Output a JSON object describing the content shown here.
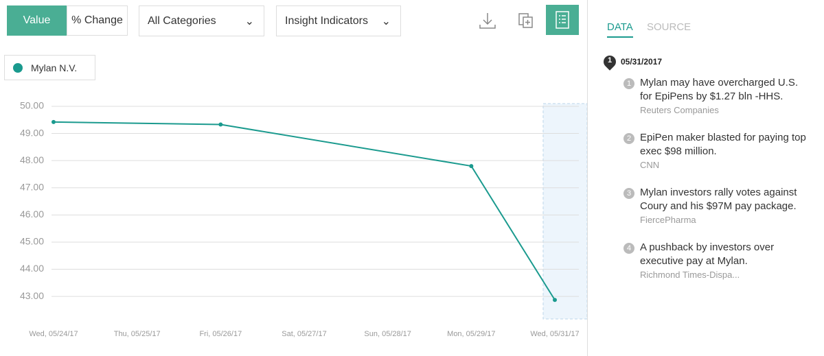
{
  "toolbar": {
    "value_button": "Value",
    "change_button": "% Change",
    "categories_dropdown": "All Categories",
    "indicators_dropdown": "Insight Indicators",
    "legend_entry": "Mylan N.V."
  },
  "chart_data": {
    "type": "line",
    "categories": [
      "Wed, 05/24/17",
      "Thu, 05/25/17",
      "Fri, 05/26/17",
      "Sat, 05/27/17",
      "Sun, 05/28/17",
      "Mon, 05/29/17",
      "Wed, 05/31/17"
    ],
    "series": [
      {
        "name": "Mylan N.V.",
        "color": "#1a9a8e",
        "values": [
          49.42,
          null,
          49.33,
          null,
          null,
          47.8,
          42.87
        ]
      }
    ],
    "ylim": [
      42.17,
      50.1
    ],
    "yticks": [
      {
        "value": 43,
        "label": "43.00"
      },
      {
        "value": 44,
        "label": "44.00"
      },
      {
        "value": 45,
        "label": "45.00"
      },
      {
        "value": 46,
        "label": "46.00"
      },
      {
        "value": 47,
        "label": "47.00"
      },
      {
        "value": 48,
        "label": "48.00"
      },
      {
        "value": 49,
        "label": "49.00"
      },
      {
        "value": 50,
        "label": "50.00"
      }
    ],
    "grid": true
  },
  "panel": {
    "tabs": [
      "DATA",
      "SOURCE"
    ],
    "marker": 1,
    "date": "05/31/2017",
    "items": [
      {
        "index": 1,
        "headline": "Mylan may have overcharged U.S. for EpiPens by $1.27 bln -HHS.",
        "source": "Reuters Companies"
      },
      {
        "index": 2,
        "headline": "EpiPen maker blasted for paying top exec $98 million.",
        "source": "CNN"
      },
      {
        "index": 3,
        "headline": "Mylan investors rally votes against Coury and his $97M pay package.",
        "source": "FiercePharma"
      },
      {
        "index": 4,
        "headline": "A pushback by investors over executive pay at Mylan.",
        "source": "Richmond Times-Dispa..."
      }
    ]
  }
}
